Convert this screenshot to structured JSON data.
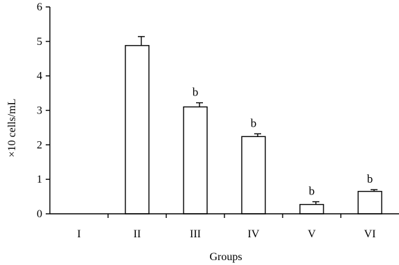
{
  "chart_data": {
    "type": "bar",
    "categories": [
      "I",
      "II",
      "III",
      "IV",
      "V",
      "VI"
    ],
    "values": [
      0,
      4.88,
      3.1,
      2.24,
      0.27,
      0.65
    ],
    "errors": [
      0,
      0.26,
      0.12,
      0.08,
      0.08,
      0.05
    ],
    "annotations": [
      "",
      "",
      "b",
      "b",
      "b",
      "b"
    ],
    "xlabel": "Groups",
    "ylabel": "×10 cells/mL",
    "ylim": [
      0,
      6
    ],
    "yticks": [
      "0",
      "1",
      "2",
      "3",
      "4",
      "5",
      "6"
    ],
    "grid": false,
    "bar_fill": "#ffffff",
    "bar_stroke": "#000000"
  }
}
